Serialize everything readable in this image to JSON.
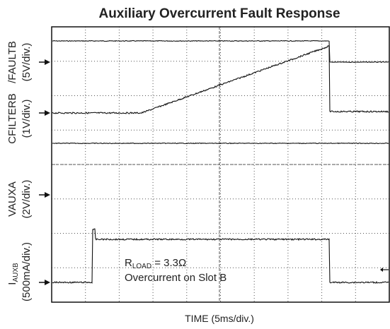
{
  "title": "Auxiliary Overcurrent Fault Response",
  "channels": [
    {
      "name": "/FAULTB",
      "scale": "(5V/div.)"
    },
    {
      "name": "CFILTERB",
      "scale": "(1V/div.)"
    },
    {
      "name": "VAUXA",
      "scale": "(2V/div.)"
    },
    {
      "name": {
        "base": "I",
        "sub": "AUXB"
      },
      "scale": "(500mA/div.)"
    }
  ],
  "annotation": {
    "line1": {
      "base": "R",
      "sub": "LOAD",
      "rest": " = 3.3Ω"
    },
    "line2": "Overcurrent on Slot B"
  },
  "x_label": "TIME (5ms/div.)"
}
